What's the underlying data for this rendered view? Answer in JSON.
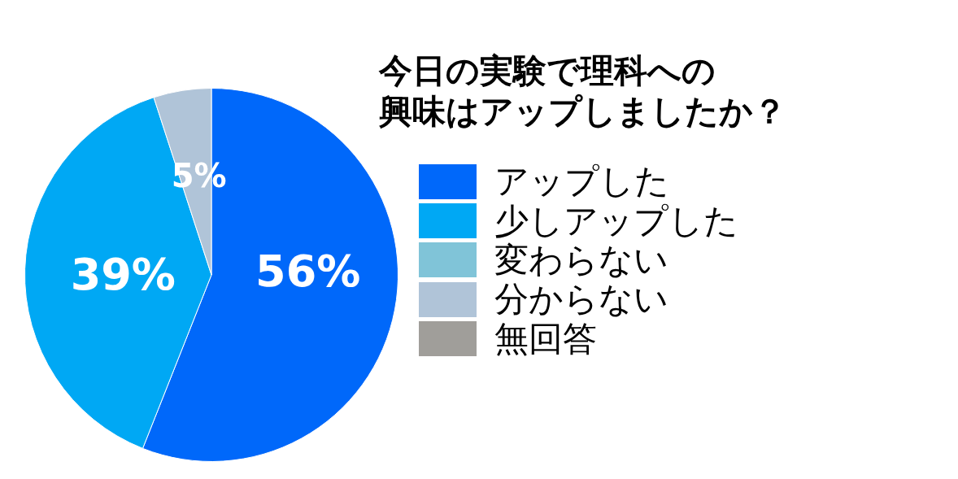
{
  "chart_data": {
    "type": "pie",
    "title": "今日の実験で理科への興味はアップしましたか？",
    "categories": [
      "アップした",
      "少しアップした",
      "変わらない",
      "分からない",
      "無回答"
    ],
    "values": [
      56,
      39,
      0,
      5,
      0
    ],
    "colors": [
      "#0068fa",
      "#00a8f4",
      "#80c4d8",
      "#b0c4d8",
      "#a09e9a"
    ],
    "value_labels": [
      "56%",
      "39%",
      null,
      "5%",
      null
    ],
    "legend": "right"
  }
}
